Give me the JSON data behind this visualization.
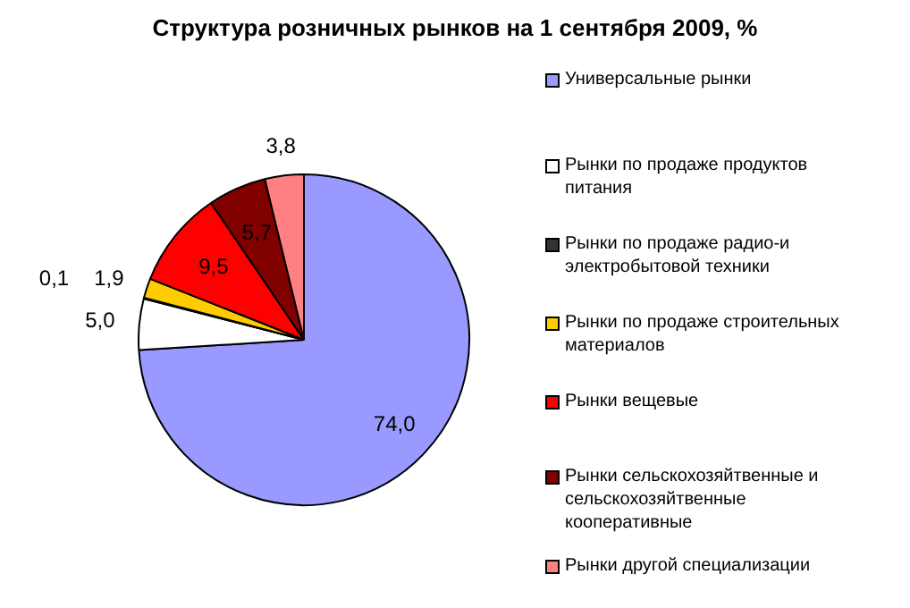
{
  "chart_data": {
    "type": "pie",
    "title": "Структура розничных рынков на 1 сентября 2009, %",
    "categories": [
      "Универсальные рынки",
      "Рынки по продаже продуктов питания",
      "Рынки по продаже радио-и электробытовой техники",
      "Рынки по продаже строительных материалов",
      "Рынки вещевые",
      "Рынки сельскохозяйтвенные и сельскохозяйтвенные кооперативные",
      "Рынки другой специализации"
    ],
    "values": [
      74.0,
      5.0,
      0.1,
      1.9,
      9.5,
      5.7,
      3.8
    ],
    "value_labels": [
      "74,0",
      "5,0",
      "0,1",
      "1,9",
      "9,5",
      "5,7",
      "3,8"
    ],
    "colors": [
      "#9999ff",
      "#ffffff",
      "#333333",
      "#ffcc00",
      "#ff0000",
      "#800000",
      "#ff8080"
    ],
    "legend": "right"
  }
}
